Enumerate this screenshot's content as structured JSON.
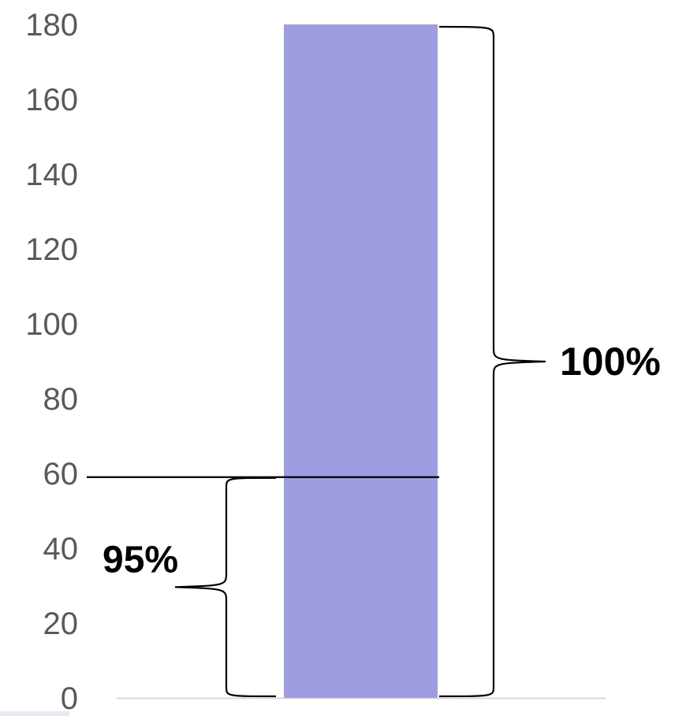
{
  "chart_data": {
    "type": "bar",
    "categories": [
      ""
    ],
    "values": [
      180
    ],
    "ylim": [
      0,
      180
    ],
    "yticks": [
      0,
      20,
      40,
      60,
      80,
      100,
      120,
      140,
      160,
      180
    ],
    "grid": false,
    "reference_line": {
      "y": 59
    },
    "annotations": [
      {
        "text": "100%",
        "y_from": 0,
        "y_to": 180,
        "side": "right"
      },
      {
        "text": "95%",
        "y_from": 0,
        "y_to": 59,
        "side": "left"
      }
    ]
  },
  "colors": {
    "bar": "#9e9ddf",
    "axis": "#d9d9d9",
    "tick_text": "#595959",
    "brace": "#000000",
    "scrollbar": "#e7eaf5"
  }
}
